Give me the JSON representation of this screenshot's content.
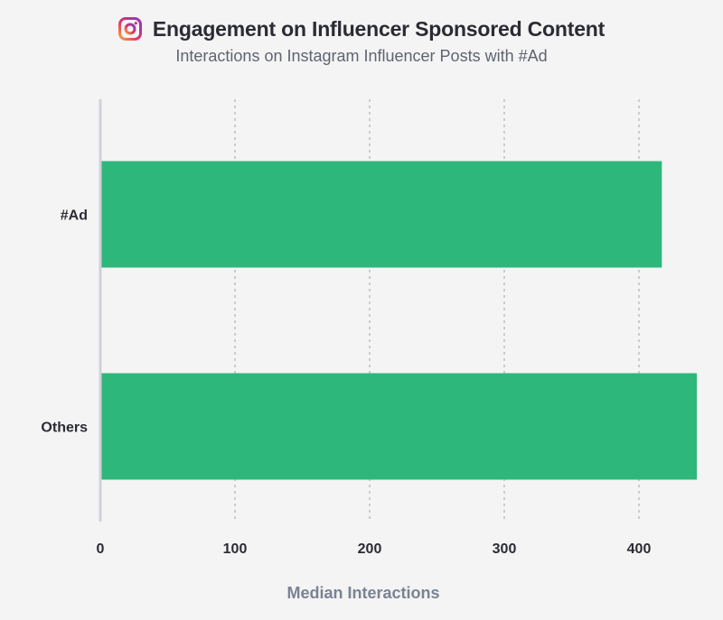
{
  "header": {
    "title": "Engagement on Influencer Sponsored Content",
    "subtitle": "Interactions on Instagram Influencer Posts with #Ad",
    "icon": "instagram-icon"
  },
  "colors": {
    "bar": "#2eb77b",
    "grid": "#c9ccd3",
    "axis": "#d0d2d8",
    "background": "#f4f4f4"
  },
  "chart_data": {
    "type": "bar",
    "orientation": "horizontal",
    "title": "Engagement on Influencer Sponsored Content",
    "subtitle": "Interactions on Instagram Influencer Posts with #Ad",
    "categories": [
      "#Ad",
      "Others"
    ],
    "values": [
      417,
      443
    ],
    "xlabel": "Median Interactions",
    "ylabel": "",
    "xlim": [
      0,
      443
    ],
    "xticks": [
      0,
      100,
      200,
      300,
      400
    ],
    "grid": "vertical-dotted",
    "legend": "none"
  }
}
